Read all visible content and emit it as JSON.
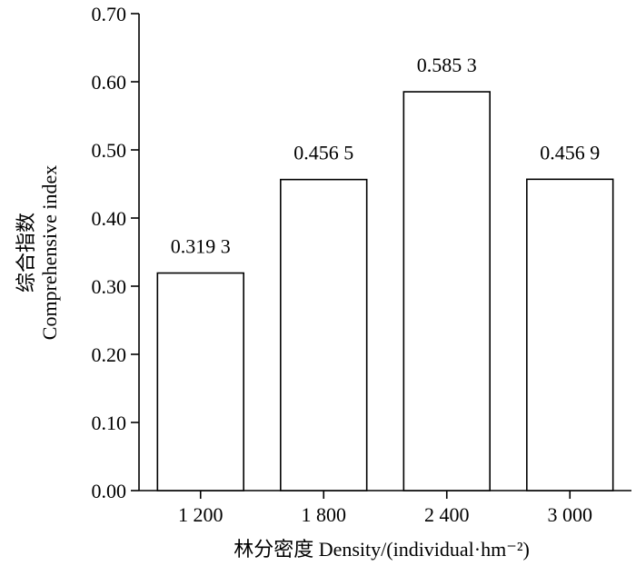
{
  "chart_data": {
    "type": "bar",
    "categories": [
      "1 200",
      "1 800",
      "2 400",
      "3 000"
    ],
    "values": [
      0.3193,
      0.4565,
      0.5853,
      0.4569
    ],
    "data_labels": [
      "0.319 3",
      "0.456 5",
      "0.585 3",
      "0.456 9"
    ],
    "title": "",
    "xlabel": "林分密度 Density/(individual·hm⁻²)",
    "ylabel_cn": "综合指数",
    "ylabel_en": "Comprehensive index",
    "ylim": [
      0,
      0.7
    ],
    "yticks": [
      0,
      0.1,
      0.2,
      0.3,
      0.4,
      0.5,
      0.6,
      0.7
    ],
    "ytick_labels": [
      "0.00",
      "0.10",
      "0.20",
      "0.30",
      "0.40",
      "0.50",
      "0.60",
      "0.70"
    ],
    "grid": false,
    "bar_fill": "#ffffff",
    "bar_stroke": "#000000"
  }
}
